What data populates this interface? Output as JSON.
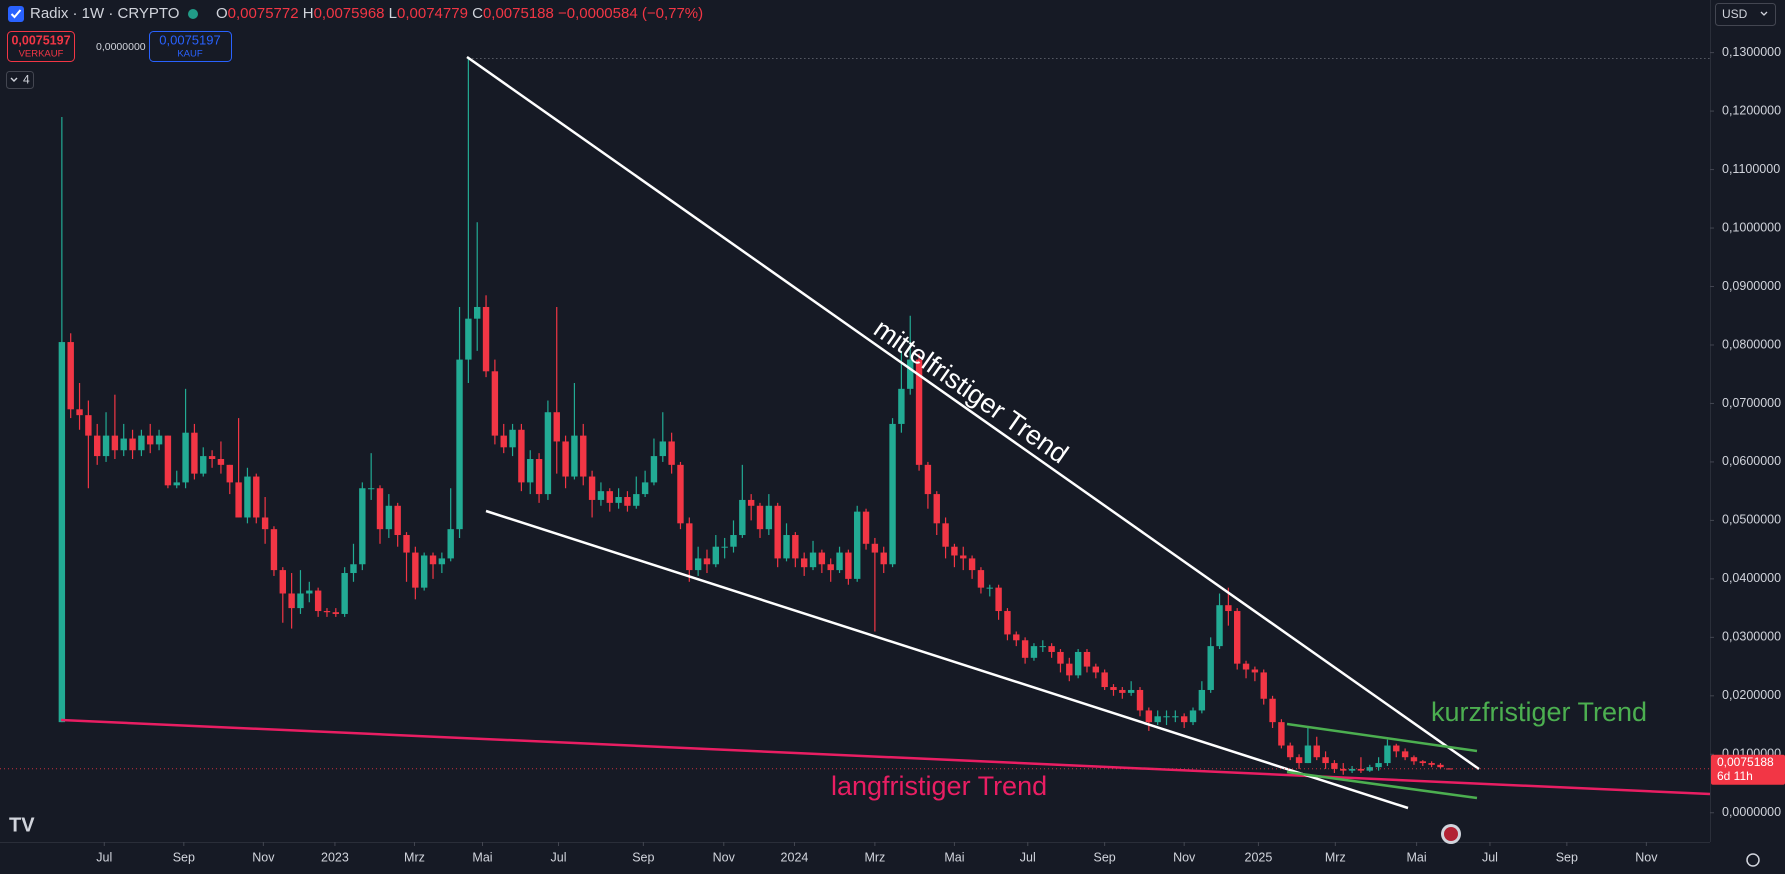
{
  "header": {
    "symbol": "Radix · 1W · CRYPTO",
    "ohlc": [
      {
        "label": "O",
        "value": "0,0075772"
      },
      {
        "label": "H",
        "value": "0,0075968"
      },
      {
        "label": "L",
        "value": "0,0074779"
      },
      {
        "label": "C",
        "value": "0,0075188"
      }
    ],
    "change": "−0,0000584 (−0,77%)"
  },
  "order_panel": {
    "sell_price": "0,0075197",
    "sell_label": "VERKAUF",
    "spread": "0,0000000",
    "buy_price": "0,0075197",
    "buy_label": "KAUF"
  },
  "indicators_count": "4",
  "currency": "USD",
  "price_tag": {
    "price": "0,0075188",
    "countdown": "6d 11h"
  },
  "chart_data": {
    "type": "candlestick",
    "up_color": "#22ab94",
    "down_color": "#f23645",
    "grid": false,
    "open": [
      0.0155,
      0.0805,
      0.069,
      0.068,
      0.0645,
      0.061,
      0.0645,
      0.062,
      0.064,
      0.062,
      0.0645,
      0.063,
      0.0645,
      0.056,
      0.0565,
      0.065,
      0.058,
      0.061,
      0.0605,
      0.0595,
      0.0565,
      0.0505,
      0.0575,
      0.0505,
      0.0485,
      0.0415,
      0.0375,
      0.035,
      0.0375,
      0.038,
      0.0345,
      0.0343,
      0.034,
      0.041,
      0.0425,
      0.0555,
      0.0555,
      0.0485,
      0.0525,
      0.0475,
      0.0445,
      0.0385,
      0.044,
      0.0425,
      0.0435,
      0.0485,
      0.0775,
      0.0845,
      0.0865,
      0.0755,
      0.0645,
      0.0625,
      0.0655,
      0.0565,
      0.0605,
      0.0545,
      0.0685,
      0.0635,
      0.0575,
      0.0645,
      0.0575,
      0.0535,
      0.055,
      0.053,
      0.054,
      0.0525,
      0.0545,
      0.0565,
      0.061,
      0.0635,
      0.0595,
      0.0495,
      0.0415,
      0.0435,
      0.0425,
      0.0455,
      0.0455,
      0.0475,
      0.0535,
      0.0525,
      0.0485,
      0.0525,
      0.0435,
      0.0475,
      0.0435,
      0.042,
      0.0445,
      0.0425,
      0.0415,
      0.0445,
      0.04,
      0.0515,
      0.046,
      0.0445,
      0.0425,
      0.0665,
      0.0725,
      0.0775,
      0.0595,
      0.0545,
      0.0495,
      0.0455,
      0.044,
      0.0435,
      0.0415,
      0.0385,
      0.0385,
      0.0345,
      0.0305,
      0.0295,
      0.0265,
      0.0285,
      0.0285,
      0.0275,
      0.0255,
      0.0235,
      0.0275,
      0.025,
      0.024,
      0.0215,
      0.021,
      0.0205,
      0.021,
      0.0175,
      0.0155,
      0.0165,
      0.0165,
      0.0165,
      0.0155,
      0.0175,
      0.021,
      0.0285,
      0.0355,
      0.0345,
      0.0255,
      0.0245,
      0.024,
      0.0195,
      0.0155,
      0.0115,
      0.0095,
      0.0085,
      0.0115,
      0.0095,
      0.0085,
      0.0075,
      0.0072,
      0.0075,
      0.0072,
      0.0078,
      0.0085,
      0.0115,
      0.0105,
      0.0095,
      0.0088,
      0.0085,
      0.0082,
      0.0075772
    ],
    "high": [
      0.119,
      0.082,
      0.0735,
      0.0705,
      0.0665,
      0.0685,
      0.0715,
      0.0665,
      0.0655,
      0.0655,
      0.0665,
      0.0655,
      0.0645,
      0.0585,
      0.0725,
      0.0665,
      0.0625,
      0.062,
      0.0635,
      0.0595,
      0.0675,
      0.059,
      0.058,
      0.054,
      0.049,
      0.042,
      0.041,
      0.0415,
      0.0395,
      0.0385,
      0.035,
      0.035,
      0.042,
      0.046,
      0.0565,
      0.0615,
      0.056,
      0.0545,
      0.053,
      0.048,
      0.0455,
      0.0445,
      0.0445,
      0.0445,
      0.0555,
      0.0865,
      0.129,
      0.101,
      0.0885,
      0.0775,
      0.0665,
      0.0665,
      0.0665,
      0.062,
      0.0615,
      0.0705,
      0.0865,
      0.0645,
      0.0735,
      0.0665,
      0.0585,
      0.0565,
      0.0555,
      0.0555,
      0.055,
      0.0575,
      0.0585,
      0.064,
      0.0685,
      0.065,
      0.06,
      0.0505,
      0.0455,
      0.045,
      0.0475,
      0.047,
      0.05,
      0.0595,
      0.0545,
      0.053,
      0.0545,
      0.053,
      0.0495,
      0.048,
      0.0445,
      0.0465,
      0.045,
      0.0435,
      0.0455,
      0.045,
      0.0525,
      0.052,
      0.047,
      0.0455,
      0.0675,
      0.079,
      0.085,
      0.0785,
      0.06,
      0.055,
      0.0505,
      0.046,
      0.0455,
      0.044,
      0.042,
      0.039,
      0.039,
      0.035,
      0.031,
      0.03,
      0.029,
      0.0295,
      0.029,
      0.028,
      0.0265,
      0.028,
      0.028,
      0.0255,
      0.0245,
      0.022,
      0.0215,
      0.0225,
      0.0215,
      0.018,
      0.0175,
      0.0175,
      0.0175,
      0.017,
      0.018,
      0.0225,
      0.03,
      0.0375,
      0.0385,
      0.035,
      0.026,
      0.025,
      0.0245,
      0.02,
      0.016,
      0.012,
      0.01,
      0.0145,
      0.013,
      0.0105,
      0.009,
      0.0085,
      0.008,
      0.0095,
      0.0082,
      0.0095,
      0.0125,
      0.0118,
      0.011,
      0.0098,
      0.009,
      0.0088,
      0.0085,
      0.0075968
    ],
    "low": [
      0.0155,
      0.0675,
      0.0655,
      0.0555,
      0.0595,
      0.06,
      0.0605,
      0.061,
      0.0605,
      0.061,
      0.0615,
      0.062,
      0.0555,
      0.0555,
      0.0555,
      0.057,
      0.0575,
      0.059,
      0.058,
      0.0545,
      0.0505,
      0.0495,
      0.0495,
      0.046,
      0.0405,
      0.0325,
      0.0315,
      0.034,
      0.036,
      0.0335,
      0.0335,
      0.0335,
      0.0335,
      0.0395,
      0.0415,
      0.0535,
      0.046,
      0.047,
      0.0455,
      0.0395,
      0.0365,
      0.038,
      0.04,
      0.041,
      0.043,
      0.047,
      0.0735,
      0.079,
      0.0745,
      0.063,
      0.0615,
      0.061,
      0.055,
      0.0545,
      0.053,
      0.0535,
      0.058,
      0.0555,
      0.057,
      0.056,
      0.0505,
      0.0525,
      0.0515,
      0.052,
      0.0515,
      0.052,
      0.054,
      0.056,
      0.06,
      0.058,
      0.0485,
      0.0395,
      0.0405,
      0.041,
      0.042,
      0.0435,
      0.0445,
      0.047,
      0.05,
      0.047,
      0.0475,
      0.042,
      0.043,
      0.042,
      0.0405,
      0.0415,
      0.041,
      0.0395,
      0.041,
      0.039,
      0.0395,
      0.045,
      0.031,
      0.041,
      0.042,
      0.065,
      0.0715,
      0.0585,
      0.052,
      0.0475,
      0.0435,
      0.042,
      0.0415,
      0.04,
      0.0375,
      0.037,
      0.033,
      0.0295,
      0.0285,
      0.0255,
      0.026,
      0.0275,
      0.0265,
      0.024,
      0.0225,
      0.023,
      0.024,
      0.023,
      0.021,
      0.02,
      0.0195,
      0.02,
      0.0165,
      0.014,
      0.015,
      0.015,
      0.0155,
      0.0145,
      0.015,
      0.017,
      0.0205,
      0.028,
      0.032,
      0.0245,
      0.023,
      0.0225,
      0.0185,
      0.0145,
      0.011,
      0.009,
      0.0075,
      0.0085,
      0.009,
      0.0075,
      0.0068,
      0.0065,
      0.0068,
      0.0068,
      0.007,
      0.0072,
      0.008,
      0.0095,
      0.009,
      0.0082,
      0.008,
      0.0078,
      0.0076,
      0.0074779
    ],
    "close": [
      0.0805,
      0.069,
      0.068,
      0.0645,
      0.061,
      0.0645,
      0.062,
      0.064,
      0.062,
      0.0645,
      0.063,
      0.0645,
      0.056,
      0.0565,
      0.065,
      0.058,
      0.061,
      0.0605,
      0.0595,
      0.0565,
      0.0505,
      0.0575,
      0.0505,
      0.0485,
      0.0415,
      0.0375,
      0.035,
      0.0375,
      0.038,
      0.0345,
      0.0343,
      0.034,
      0.041,
      0.0425,
      0.0555,
      0.0555,
      0.0485,
      0.0525,
      0.0475,
      0.0445,
      0.0385,
      0.044,
      0.0425,
      0.0435,
      0.0485,
      0.0775,
      0.0845,
      0.0865,
      0.0755,
      0.0645,
      0.0625,
      0.0655,
      0.0565,
      0.0605,
      0.0545,
      0.0685,
      0.0635,
      0.0575,
      0.0645,
      0.0575,
      0.0535,
      0.055,
      0.053,
      0.054,
      0.0525,
      0.0545,
      0.0565,
      0.061,
      0.0635,
      0.0595,
      0.0495,
      0.0415,
      0.0435,
      0.0425,
      0.0455,
      0.0455,
      0.0475,
      0.0535,
      0.0525,
      0.0485,
      0.0525,
      0.0435,
      0.0475,
      0.0435,
      0.042,
      0.0445,
      0.0425,
      0.0415,
      0.0445,
      0.04,
      0.0515,
      0.046,
      0.0445,
      0.0425,
      0.0665,
      0.0725,
      0.0775,
      0.0595,
      0.0545,
      0.0495,
      0.0455,
      0.044,
      0.0435,
      0.0415,
      0.0385,
      0.0385,
      0.0345,
      0.0305,
      0.0295,
      0.0265,
      0.0285,
      0.0285,
      0.0275,
      0.0255,
      0.0235,
      0.0275,
      0.025,
      0.024,
      0.0215,
      0.021,
      0.0205,
      0.021,
      0.0175,
      0.0155,
      0.0165,
      0.0165,
      0.0165,
      0.0155,
      0.0175,
      0.021,
      0.0285,
      0.0355,
      0.0345,
      0.0255,
      0.0245,
      0.024,
      0.0195,
      0.0155,
      0.0115,
      0.0095,
      0.0085,
      0.0115,
      0.0095,
      0.0085,
      0.0075,
      0.0072,
      0.0075,
      0.0072,
      0.0078,
      0.0085,
      0.0115,
      0.0105,
      0.0095,
      0.0088,
      0.0085,
      0.0082,
      0.0078,
      0.0075188
    ],
    "xlim": [
      -7,
      186.5
    ],
    "xticks": [
      {
        "value": 4.8,
        "label": "Jul"
      },
      {
        "value": 13.8,
        "label": "Sep"
      },
      {
        "value": 22.8,
        "label": "Nov"
      },
      {
        "value": 30.9,
        "label": "2023"
      },
      {
        "value": 39.9,
        "label": "Mrz"
      },
      {
        "value": 47.6,
        "label": "Mai"
      },
      {
        "value": 56.2,
        "label": "Jul"
      },
      {
        "value": 65.8,
        "label": "Sep"
      },
      {
        "value": 74.9,
        "label": "Nov"
      },
      {
        "value": 82.9,
        "label": "2024"
      },
      {
        "value": 92.0,
        "label": "Mrz"
      },
      {
        "value": 101.0,
        "label": "Mai"
      },
      {
        "value": 109.3,
        "label": "Jul"
      },
      {
        "value": 118.0,
        "label": "Sep"
      },
      {
        "value": 127.0,
        "label": "Nov"
      },
      {
        "value": 135.4,
        "label": "2025"
      },
      {
        "value": 144.1,
        "label": "Mrz"
      },
      {
        "value": 153.3,
        "label": "Mai"
      },
      {
        "value": 161.6,
        "label": "Jul"
      },
      {
        "value": 170.3,
        "label": "Sep"
      },
      {
        "value": 179.3,
        "label": "Nov"
      }
    ],
    "ylim": [
      -0.005,
      0.139
    ],
    "yticks": [
      {
        "value": 0,
        "label": "0,0000000"
      },
      {
        "value": 0.01,
        "label": "0,0100000"
      },
      {
        "value": 0.02,
        "label": "0,0200000"
      },
      {
        "value": 0.03,
        "label": "0,0300000"
      },
      {
        "value": 0.04,
        "label": "0,0400000"
      },
      {
        "value": 0.05,
        "label": "0,0500000"
      },
      {
        "value": 0.06,
        "label": "0,0600000"
      },
      {
        "value": 0.07,
        "label": "0,0700000"
      },
      {
        "value": 0.08,
        "label": "0,0800000"
      },
      {
        "value": 0.09,
        "label": "0,0900000"
      },
      {
        "value": 0.1,
        "label": "0,1000000"
      },
      {
        "value": 0.11,
        "label": "0,1100000"
      },
      {
        "value": 0.12,
        "label": "0,1200000"
      },
      {
        "value": 0.13,
        "label": "0,1300000"
      }
    ],
    "annotations": [
      "mittelfristiger Trend",
      "kurzfristiger Trend",
      "langfristiger Trend"
    ]
  }
}
